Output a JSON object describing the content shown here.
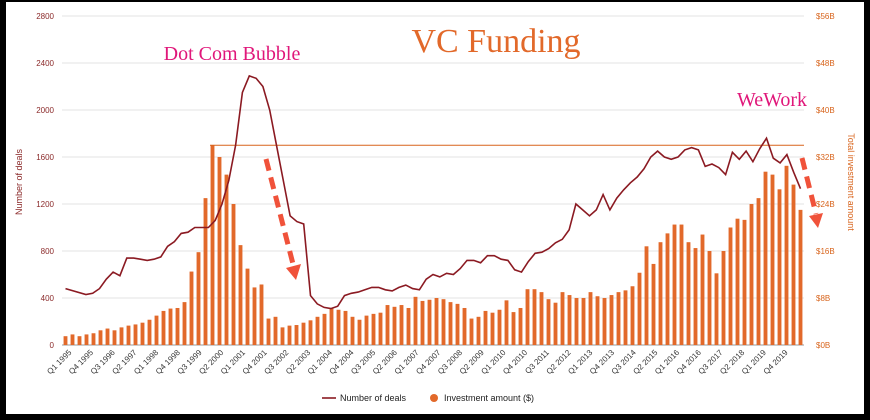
{
  "chart_data": {
    "type": "bar+line",
    "title": "VC Funding",
    "ylabel_left": "Number of deals",
    "ylabel_right": "Total investment amount",
    "y_left_ticks": [
      "0",
      "400",
      "800",
      "1200",
      "1600",
      "2000",
      "2400",
      "2800"
    ],
    "y_right_ticks": [
      "$0B",
      "$8B",
      "$16B",
      "$24B",
      "$32B",
      "$40B",
      "$48B",
      "$56B"
    ],
    "ylim_left": [
      0,
      2800
    ],
    "ylim_right": [
      0,
      56
    ],
    "x_tick_labels": [
      "Q1 1995",
      "Q4 1995",
      "Q3 1996",
      "Q2 1997",
      "Q1 1998",
      "Q4 1998",
      "Q3 1999",
      "Q2 2000",
      "Q1 2001",
      "Q4 2001",
      "Q3 2002",
      "Q2 2003",
      "Q1 2004",
      "Q4 2004",
      "Q3 2005",
      "Q2 2006",
      "Q1 2007",
      "Q4 2007",
      "Q3 2008",
      "Q2 2009",
      "Q1 2010",
      "Q4 2010",
      "Q3 2011",
      "Q2 2012",
      "Q1 2013",
      "Q4 2013",
      "Q3 2014",
      "Q2 2015",
      "Q1 2016",
      "Q4 2016",
      "Q3 2017",
      "Q2 2018",
      "Q1 2019",
      "Q4 2019"
    ],
    "legend": {
      "line": "Number of deals",
      "bars": "Investment amount ($)",
      "position": "bottom"
    },
    "annotations": [
      {
        "text": "Dot Com Bubble",
        "color": "#e0177a"
      },
      {
        "text": "WeWork",
        "color": "#e0177a"
      }
    ],
    "reference_line_deals": 1700,
    "series": [
      {
        "name": "Investment amount ($)",
        "kind": "bar",
        "unit": "$B",
        "values": [
          1.5,
          1.8,
          1.5,
          1.8,
          2.0,
          2.5,
          2.8,
          2.5,
          3.0,
          3.3,
          3.5,
          3.8,
          4.3,
          5.0,
          5.8,
          6.2,
          6.3,
          7.3,
          12.5,
          15.8,
          25.0,
          34.0,
          32.0,
          29.0,
          24.0,
          17.0,
          13.0,
          9.8,
          10.3,
          4.5,
          4.8,
          3.0,
          3.3,
          3.4,
          3.8,
          4.2,
          4.8,
          5.3,
          6.2,
          6.0,
          5.8,
          4.8,
          4.3,
          5.0,
          5.3,
          5.5,
          6.8,
          6.5,
          6.8,
          6.3,
          8.2,
          7.5,
          7.7,
          8.0,
          7.8,
          7.3,
          7.0,
          6.3,
          4.5,
          4.8,
          5.8,
          5.5,
          6.0,
          7.6,
          5.6,
          6.3,
          9.5,
          9.5,
          9.0,
          7.8,
          7.2,
          9.0,
          8.5,
          8.0,
          8.0,
          9.0,
          8.3,
          8.0,
          8.5,
          9.0,
          9.3,
          10.0,
          12.3,
          16.8,
          13.8,
          17.5,
          19.0,
          20.5,
          20.5,
          17.5,
          16.5,
          18.8,
          16.0,
          12.2,
          16.0,
          20.0,
          21.5,
          21.3,
          24.0,
          25.0,
          29.5,
          29.0,
          26.5,
          30.5,
          27.3,
          23.0
        ]
      },
      {
        "name": "Number of deals",
        "kind": "line",
        "points": [
          [
            0,
            480
          ],
          [
            3,
            430
          ],
          [
            4,
            440
          ],
          [
            5,
            480
          ],
          [
            6,
            560
          ],
          [
            7,
            620
          ],
          [
            8,
            590
          ],
          [
            9,
            740
          ],
          [
            10,
            740
          ],
          [
            11,
            730
          ],
          [
            12,
            720
          ],
          [
            13,
            730
          ],
          [
            14,
            750
          ],
          [
            15,
            840
          ],
          [
            16,
            880
          ],
          [
            17,
            950
          ],
          [
            18,
            960
          ],
          [
            19,
            1000
          ],
          [
            20,
            1000
          ],
          [
            21,
            1000
          ],
          [
            22,
            1060
          ],
          [
            23,
            1200
          ],
          [
            24,
            1400
          ],
          [
            25,
            1700
          ],
          [
            26,
            2150
          ],
          [
            27,
            2290
          ],
          [
            28,
            2270
          ],
          [
            29,
            2200
          ],
          [
            30,
            2000
          ],
          [
            31,
            1700
          ],
          [
            32,
            1400
          ],
          [
            33,
            1100
          ],
          [
            34,
            1050
          ],
          [
            35,
            1030
          ],
          [
            36,
            420
          ],
          [
            37,
            350
          ],
          [
            38,
            320
          ],
          [
            39,
            310
          ],
          [
            40,
            330
          ],
          [
            41,
            420
          ],
          [
            42,
            440
          ],
          [
            43,
            450
          ],
          [
            44,
            470
          ],
          [
            45,
            490
          ],
          [
            46,
            490
          ],
          [
            47,
            470
          ],
          [
            48,
            460
          ],
          [
            49,
            490
          ],
          [
            50,
            510
          ],
          [
            51,
            480
          ],
          [
            52,
            470
          ],
          [
            53,
            560
          ],
          [
            54,
            600
          ],
          [
            55,
            580
          ],
          [
            56,
            610
          ],
          [
            57,
            600
          ],
          [
            58,
            650
          ],
          [
            59,
            720
          ],
          [
            60,
            720
          ],
          [
            61,
            700
          ],
          [
            62,
            760
          ],
          [
            63,
            760
          ],
          [
            64,
            730
          ],
          [
            65,
            720
          ],
          [
            66,
            640
          ],
          [
            67,
            620
          ],
          [
            68,
            710
          ],
          [
            69,
            780
          ],
          [
            70,
            790
          ],
          [
            71,
            820
          ],
          [
            72,
            870
          ],
          [
            73,
            900
          ],
          [
            74,
            980
          ],
          [
            75,
            1200
          ],
          [
            76,
            1150
          ],
          [
            77,
            1100
          ],
          [
            78,
            1150
          ],
          [
            79,
            1280
          ],
          [
            80,
            1150
          ],
          [
            81,
            1250
          ],
          [
            82,
            1320
          ],
          [
            83,
            1380
          ],
          [
            84,
            1430
          ],
          [
            85,
            1500
          ],
          [
            86,
            1600
          ],
          [
            87,
            1650
          ],
          [
            88,
            1600
          ],
          [
            89,
            1580
          ],
          [
            90,
            1600
          ],
          [
            91,
            1660
          ],
          [
            92,
            1680
          ],
          [
            93,
            1660
          ],
          [
            94,
            1520
          ],
          [
            95,
            1540
          ],
          [
            96,
            1510
          ],
          [
            97,
            1450
          ],
          [
            98,
            1640
          ],
          [
            99,
            1580
          ],
          [
            100,
            1650
          ],
          [
            101,
            1560
          ],
          [
            102,
            1670
          ],
          [
            103,
            1760
          ],
          [
            104,
            1590
          ],
          [
            105,
            1550
          ],
          [
            106,
            1620
          ],
          [
            107,
            1470
          ],
          [
            108,
            1330
          ]
        ],
        "x_scale_points": 108
      }
    ]
  }
}
